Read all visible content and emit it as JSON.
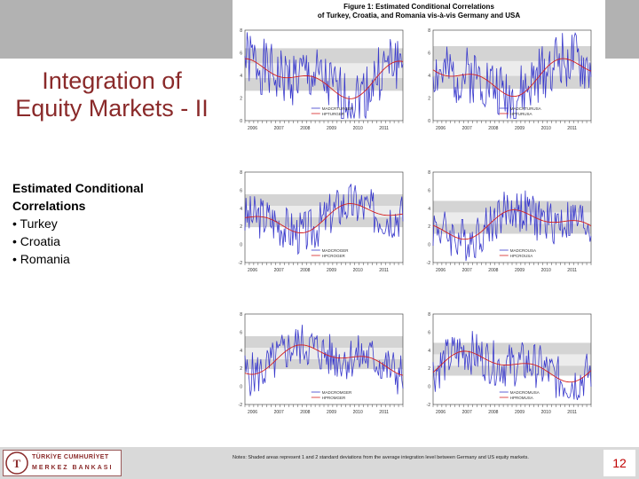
{
  "slide": {
    "title": "Integration of Equity Markets - II",
    "subtitle": "Estimated Conditional Correlations",
    "bullets": [
      "• Turkey",
      "• Croatia",
      "• Romania"
    ],
    "page_number": "12"
  },
  "figure": {
    "title_line1": "Figure 1: Estimated Conditional Correlations",
    "title_line2": "of Turkey, Croatia, and Romania vis-à-vis Germany and USA",
    "notes": "Notes: Shaded areas represent 1 and 2 standard deviations from the average integration level between Germany and US equity markets."
  },
  "logo": {
    "line1": "TÜRKİYE CUMHURİYET",
    "line2": "MERKEZ BANKASI"
  },
  "colors": {
    "title": "#8a2a2a",
    "page_number": "#c00000",
    "mdcc_line": "#3a3acc",
    "hpf_line": "#d42020",
    "band_outer": "#d4d4d4",
    "band_inner": "#ececec"
  },
  "chart_data": [
    {
      "type": "line",
      "title": "",
      "legend": [
        "MADCRTURGER",
        "HPTURGER"
      ],
      "x_ticks": [
        "2006",
        "2007",
        "2008",
        "2009",
        "2010",
        "2011"
      ],
      "y_ticks": [
        "0",
        "2",
        "4",
        "6",
        "8"
      ],
      "ylim": [
        0.0,
        0.85
      ],
      "series_seed": 1,
      "level": 0.4
    },
    {
      "type": "line",
      "title": "",
      "legend": [
        "MADCRTURUSA",
        "HPTURUSA"
      ],
      "x_ticks": [
        "2006",
        "2007",
        "2008",
        "2009",
        "2010",
        "2011"
      ],
      "y_ticks": [
        "0",
        "2",
        "4",
        "6",
        "8"
      ],
      "ylim": [
        0.0,
        0.85
      ],
      "series_seed": 2,
      "level": 0.42
    },
    {
      "type": "line",
      "title": "",
      "legend": [
        "MADCROGER",
        "HPCROGER"
      ],
      "x_ticks": [
        "2006",
        "2007",
        "2008",
        "2009",
        "2010",
        "2011"
      ],
      "y_ticks": [
        "-2",
        "0",
        "2",
        "4",
        "6",
        "8"
      ],
      "ylim": [
        -0.25,
        0.85
      ],
      "series_seed": 3,
      "level": 0.3
    },
    {
      "type": "line",
      "title": "",
      "legend": [
        "MADCROUSA",
        "HPCROUSA"
      ],
      "x_ticks": [
        "2006",
        "2007",
        "2008",
        "2009",
        "2010",
        "2011"
      ],
      "y_ticks": [
        "-2",
        "0",
        "2",
        "4",
        "6",
        "8"
      ],
      "ylim": [
        -0.25,
        0.85
      ],
      "series_seed": 4,
      "level": 0.22
    },
    {
      "type": "line",
      "title": "",
      "legend": [
        "MADCROMGER",
        "HPROMGER"
      ],
      "x_ticks": [
        "2006",
        "2007",
        "2008",
        "2009",
        "2010",
        "2011"
      ],
      "y_ticks": [
        "-2",
        "0",
        "2",
        "4",
        "6",
        "8"
      ],
      "ylim": [
        -0.25,
        0.85
      ],
      "series_seed": 5,
      "level": 0.3
    },
    {
      "type": "line",
      "title": "",
      "legend": [
        "MADCROMUSA",
        "HPROMUSA"
      ],
      "x_ticks": [
        "2006",
        "2007",
        "2008",
        "2009",
        "2010",
        "2011"
      ],
      "y_ticks": [
        "-2",
        "0",
        "2",
        "4",
        "6",
        "8"
      ],
      "ylim": [
        -0.25,
        0.85
      ],
      "series_seed": 6,
      "level": 0.22
    }
  ]
}
